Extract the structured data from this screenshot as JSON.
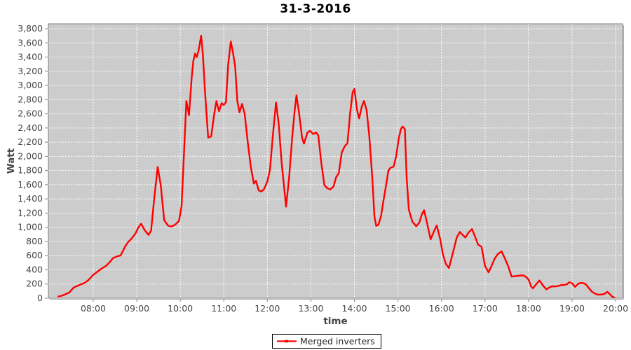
{
  "chart_data": {
    "type": "line",
    "title": "31-3-2016",
    "xlabel": "time",
    "ylabel": "Watt",
    "grid": true,
    "x_axis": {
      "unit": "decimal-hour-of-day",
      "min": 6.97,
      "max": 20.16
    },
    "y_axis": {
      "unit": "watt",
      "min": 0,
      "max": 3869
    },
    "x_ticks": [
      {
        "v": 8,
        "label": "08:00"
      },
      {
        "v": 9,
        "label": "09:00"
      },
      {
        "v": 10,
        "label": "10:00"
      },
      {
        "v": 11,
        "label": "11:00"
      },
      {
        "v": 12,
        "label": "12:00"
      },
      {
        "v": 13,
        "label": "13:00"
      },
      {
        "v": 14,
        "label": "14:00"
      },
      {
        "v": 15,
        "label": "15:00"
      },
      {
        "v": 16,
        "label": "16:00"
      },
      {
        "v": 17,
        "label": "17:00"
      },
      {
        "v": 18,
        "label": "18:00"
      },
      {
        "v": 19,
        "label": "19:00"
      },
      {
        "v": 20,
        "label": "20:00"
      }
    ],
    "y_ticks": [
      {
        "v": 0,
        "label": "0"
      },
      {
        "v": 200,
        "label": "200"
      },
      {
        "v": 400,
        "label": "400"
      },
      {
        "v": 600,
        "label": "600"
      },
      {
        "v": 800,
        "label": "800"
      },
      {
        "v": 1000,
        "label": "1,000"
      },
      {
        "v": 1200,
        "label": "1,200"
      },
      {
        "v": 1400,
        "label": "1,400"
      },
      {
        "v": 1600,
        "label": "1,600"
      },
      {
        "v": 1800,
        "label": "1,800"
      },
      {
        "v": 2000,
        "label": "2,000"
      },
      {
        "v": 2200,
        "label": "2,200"
      },
      {
        "v": 2400,
        "label": "2,400"
      },
      {
        "v": 2600,
        "label": "2,600"
      },
      {
        "v": 2800,
        "label": "2,800"
      },
      {
        "v": 3000,
        "label": "3,000"
      },
      {
        "v": 3200,
        "label": "3,200"
      },
      {
        "v": 3400,
        "label": "3,400"
      },
      {
        "v": 3600,
        "label": "3,600"
      },
      {
        "v": 3800,
        "label": "3,800"
      }
    ],
    "legend": {
      "position": "bottom-center",
      "entries": [
        {
          "label": "Merged inverters",
          "color": "#ff0000"
        }
      ]
    },
    "colors": {
      "series": "#ff0000",
      "plot_background": "#cccccc",
      "grid": "#ffffff",
      "tick_text": "#464646",
      "axis": "#808080",
      "title_text": "#000000"
    },
    "series": [
      {
        "name": "Merged inverters",
        "color": "#ff0000",
        "points": [
          [
            7.2,
            25
          ],
          [
            7.28,
            35
          ],
          [
            7.36,
            55
          ],
          [
            7.45,
            80
          ],
          [
            7.55,
            150
          ],
          [
            7.65,
            178
          ],
          [
            7.72,
            195
          ],
          [
            7.8,
            215
          ],
          [
            7.88,
            250
          ],
          [
            8.0,
            330
          ],
          [
            8.1,
            375
          ],
          [
            8.2,
            420
          ],
          [
            8.3,
            458
          ],
          [
            8.4,
            522
          ],
          [
            8.45,
            565
          ],
          [
            8.55,
            590
          ],
          [
            8.63,
            602
          ],
          [
            8.73,
            725
          ],
          [
            8.8,
            790
          ],
          [
            8.87,
            832
          ],
          [
            8.97,
            912
          ],
          [
            9.03,
            990
          ],
          [
            9.1,
            1050
          ],
          [
            9.18,
            962
          ],
          [
            9.27,
            892
          ],
          [
            9.33,
            952
          ],
          [
            9.4,
            1400
          ],
          [
            9.48,
            1850
          ],
          [
            9.55,
            1600
          ],
          [
            9.63,
            1100
          ],
          [
            9.72,
            1022
          ],
          [
            9.8,
            1012
          ],
          [
            9.88,
            1035
          ],
          [
            9.97,
            1090
          ],
          [
            10.03,
            1300
          ],
          [
            10.09,
            2100
          ],
          [
            10.14,
            2780
          ],
          [
            10.2,
            2580
          ],
          [
            10.26,
            3100
          ],
          [
            10.3,
            3350
          ],
          [
            10.34,
            3450
          ],
          [
            10.38,
            3400
          ],
          [
            10.42,
            3490
          ],
          [
            10.48,
            3700
          ],
          [
            10.52,
            3430
          ],
          [
            10.57,
            2900
          ],
          [
            10.64,
            2265
          ],
          [
            10.71,
            2280
          ],
          [
            10.78,
            2600
          ],
          [
            10.83,
            2780
          ],
          [
            10.89,
            2635
          ],
          [
            10.95,
            2750
          ],
          [
            11.0,
            2725
          ],
          [
            11.05,
            2765
          ],
          [
            11.1,
            3290
          ],
          [
            11.16,
            3620
          ],
          [
            11.21,
            3460
          ],
          [
            11.26,
            3270
          ],
          [
            11.31,
            2780
          ],
          [
            11.36,
            2620
          ],
          [
            11.42,
            2740
          ],
          [
            11.48,
            2600
          ],
          [
            11.55,
            2200
          ],
          [
            11.62,
            1855
          ],
          [
            11.69,
            1615
          ],
          [
            11.74,
            1655
          ],
          [
            11.8,
            1520
          ],
          [
            11.86,
            1505
          ],
          [
            11.92,
            1535
          ],
          [
            12.0,
            1645
          ],
          [
            12.06,
            1815
          ],
          [
            12.12,
            2255
          ],
          [
            12.2,
            2760
          ],
          [
            12.26,
            2460
          ],
          [
            12.33,
            1900
          ],
          [
            12.43,
            1290
          ],
          [
            12.5,
            1705
          ],
          [
            12.57,
            2260
          ],
          [
            12.63,
            2655
          ],
          [
            12.67,
            2860
          ],
          [
            12.73,
            2600
          ],
          [
            12.8,
            2255
          ],
          [
            12.84,
            2180
          ],
          [
            12.92,
            2335
          ],
          [
            12.98,
            2360
          ],
          [
            13.05,
            2315
          ],
          [
            13.12,
            2335
          ],
          [
            13.17,
            2295
          ],
          [
            13.24,
            1905
          ],
          [
            13.31,
            1595
          ],
          [
            13.38,
            1550
          ],
          [
            13.45,
            1535
          ],
          [
            13.52,
            1575
          ],
          [
            13.58,
            1705
          ],
          [
            13.64,
            1765
          ],
          [
            13.71,
            2055
          ],
          [
            13.78,
            2145
          ],
          [
            13.84,
            2185
          ],
          [
            13.9,
            2600
          ],
          [
            13.96,
            2905
          ],
          [
            14.0,
            2950
          ],
          [
            14.06,
            2655
          ],
          [
            14.11,
            2535
          ],
          [
            14.17,
            2705
          ],
          [
            14.22,
            2780
          ],
          [
            14.28,
            2650
          ],
          [
            14.34,
            2300
          ],
          [
            14.41,
            1700
          ],
          [
            14.46,
            1150
          ],
          [
            14.5,
            1020
          ],
          [
            14.55,
            1035
          ],
          [
            14.61,
            1155
          ],
          [
            14.67,
            1385
          ],
          [
            14.73,
            1600
          ],
          [
            14.78,
            1795
          ],
          [
            14.83,
            1840
          ],
          [
            14.9,
            1855
          ],
          [
            14.96,
            2005
          ],
          [
            15.02,
            2255
          ],
          [
            15.07,
            2390
          ],
          [
            15.11,
            2420
          ],
          [
            15.16,
            2385
          ],
          [
            15.2,
            1700
          ],
          [
            15.25,
            1250
          ],
          [
            15.33,
            1080
          ],
          [
            15.42,
            1015
          ],
          [
            15.49,
            1065
          ],
          [
            15.55,
            1185
          ],
          [
            15.6,
            1240
          ],
          [
            15.67,
            1055
          ],
          [
            15.75,
            830
          ],
          [
            15.83,
            945
          ],
          [
            15.89,
            1025
          ],
          [
            15.97,
            835
          ],
          [
            16.03,
            625
          ],
          [
            16.1,
            485
          ],
          [
            16.17,
            425
          ],
          [
            16.23,
            565
          ],
          [
            16.29,
            705
          ],
          [
            16.35,
            855
          ],
          [
            16.42,
            935
          ],
          [
            16.48,
            895
          ],
          [
            16.55,
            855
          ],
          [
            16.62,
            925
          ],
          [
            16.7,
            975
          ],
          [
            16.76,
            885
          ],
          [
            16.84,
            755
          ],
          [
            16.92,
            725
          ],
          [
            17.0,
            455
          ],
          [
            17.08,
            365
          ],
          [
            17.15,
            455
          ],
          [
            17.22,
            555
          ],
          [
            17.29,
            620
          ],
          [
            17.38,
            660
          ],
          [
            17.46,
            555
          ],
          [
            17.53,
            455
          ],
          [
            17.61,
            305
          ],
          [
            17.68,
            310
          ],
          [
            17.75,
            315
          ],
          [
            17.82,
            322
          ],
          [
            17.89,
            320
          ],
          [
            17.95,
            295
          ],
          [
            18.0,
            262
          ],
          [
            18.06,
            165
          ],
          [
            18.1,
            140
          ],
          [
            18.17,
            192
          ],
          [
            18.25,
            250
          ],
          [
            18.33,
            180
          ],
          [
            18.41,
            125
          ],
          [
            18.48,
            152
          ],
          [
            18.54,
            168
          ],
          [
            18.61,
            166
          ],
          [
            18.68,
            172
          ],
          [
            18.75,
            186
          ],
          [
            18.82,
            188
          ],
          [
            18.88,
            195
          ],
          [
            18.94,
            226
          ],
          [
            19.0,
            210
          ],
          [
            19.07,
            160
          ],
          [
            19.13,
            198
          ],
          [
            19.19,
            215
          ],
          [
            19.26,
            212
          ],
          [
            19.31,
            200
          ],
          [
            19.38,
            145
          ],
          [
            19.46,
            90
          ],
          [
            19.54,
            60
          ],
          [
            19.61,
            48
          ],
          [
            19.68,
            52
          ],
          [
            19.75,
            62
          ],
          [
            19.81,
            90
          ],
          [
            19.87,
            55
          ],
          [
            19.92,
            22
          ],
          [
            19.97,
            10
          ]
        ]
      }
    ]
  }
}
